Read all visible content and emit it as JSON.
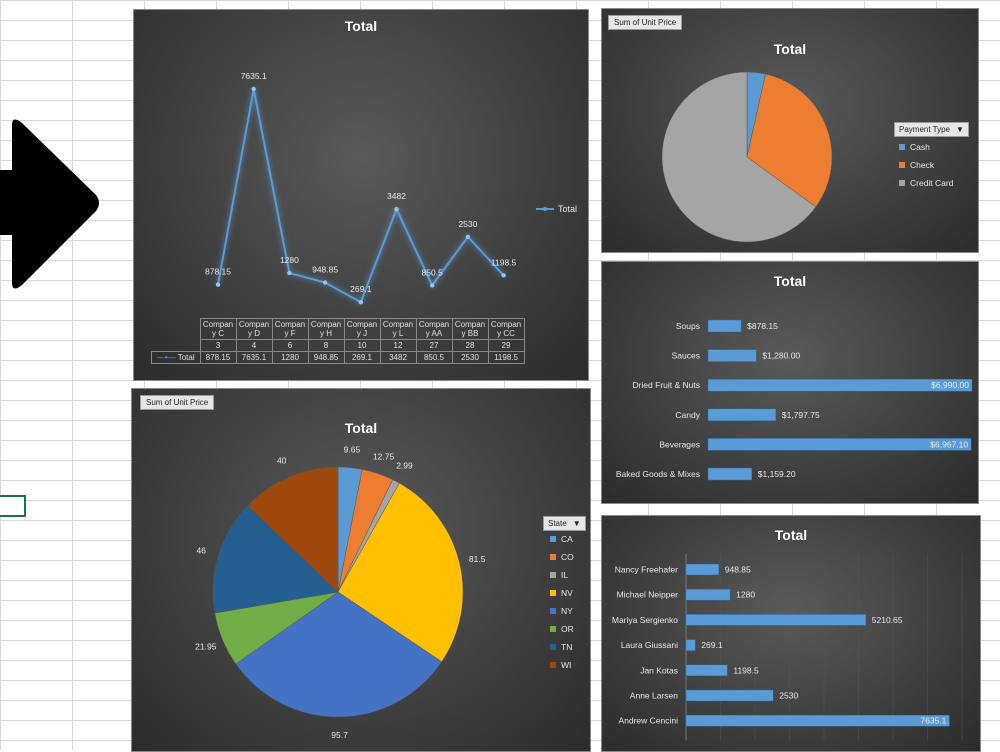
{
  "charts": {
    "line": {
      "title": "Total",
      "legend": "Total",
      "chart_data": {
        "type": "line",
        "categories": [
          "Company C",
          "Company D",
          "Company F",
          "Company H",
          "Company J",
          "Company L",
          "Company AA",
          "Company BB",
          "Company CC"
        ],
        "cat_line1": [
          "Compan",
          "Compan",
          "Compan",
          "Compan",
          "Compan",
          "Compan",
          "Compan",
          "Compan",
          "Compan"
        ],
        "cat_line2": [
          "y C",
          "y D",
          "y F",
          "y H",
          "y J",
          "y L",
          "y AA",
          "y BB",
          "y CC"
        ],
        "ids": [
          "3",
          "4",
          "6",
          "8",
          "10",
          "12",
          "27",
          "28",
          "29"
        ],
        "values": [
          878.15,
          7635.1,
          1280,
          948.85,
          269.1,
          3482,
          850.5,
          2530,
          1198.5
        ],
        "value_labels": [
          "878.15",
          "7635.1",
          "1280",
          "948.85",
          "269.1",
          "3482",
          "850.5",
          "2530",
          "1198.5"
        ],
        "series_name": "Total",
        "color": "#5b9bd5"
      }
    },
    "pie_payment": {
      "field_button": "Sum of Unit Price",
      "title": "Total",
      "legend_title": "Payment Type",
      "chart_data": {
        "type": "pie",
        "labels": [
          "Cash",
          "Check",
          "Credit Card"
        ],
        "values": [
          3.5,
          31.5,
          65
        ],
        "colors": [
          "#5b9bd5",
          "#ed7d31",
          "#a5a5a5"
        ]
      }
    },
    "bar_category": {
      "title": "Total",
      "chart_data": {
        "type": "bar",
        "orientation": "horizontal",
        "categories": [
          "Soups",
          "Sauces",
          "Dried Fruit & Nuts",
          "Candy",
          "Beverages",
          "Baked Goods & Mixes"
        ],
        "values": [
          878.15,
          1280,
          6990,
          1797.75,
          6967.1,
          1159.2
        ],
        "value_labels": [
          "$878.15",
          "$1,280.00",
          "$6,990.00",
          "$1,797.75",
          "$6,967.10",
          "$1,159.20"
        ],
        "xlim": [
          0,
          6990
        ],
        "color": "#5b9bd5"
      }
    },
    "pie_state": {
      "field_button": "Sum of Unit Price",
      "title": "Total",
      "legend_title": "State",
      "chart_data": {
        "type": "pie",
        "labels": [
          "CA",
          "CO",
          "IL",
          "NV",
          "NY",
          "OR",
          "TN",
          "WI"
        ],
        "values": [
          9.65,
          12.75,
          2.99,
          81.5,
          95.7,
          21.95,
          46,
          40
        ],
        "value_labels": [
          "9.65",
          "12.75",
          "2.99",
          "81.5",
          "95.7",
          "21.95",
          "46",
          "40"
        ],
        "colors": [
          "#5b9bd5",
          "#ed7d31",
          "#a5a5a5",
          "#ffc000",
          "#4472c4",
          "#70ad47",
          "#255e91",
          "#9e480e"
        ]
      }
    },
    "bar_employee": {
      "title": "Total",
      "chart_data": {
        "type": "bar",
        "orientation": "horizontal",
        "categories": [
          "Nancy Freehafer",
          "Michael Neipper",
          "Mariya Sergienko",
          "Laura Giussani",
          "Jan Kotas",
          "Anne Larsen",
          "Andrew Cencini"
        ],
        "values": [
          948.85,
          1280,
          5210.65,
          269.1,
          1198.5,
          2530,
          7635.1
        ],
        "value_labels": [
          "948.85",
          "1280",
          "5210.65",
          "269.1",
          "1198.5",
          "2530",
          "7635.1"
        ],
        "xlim": [
          0,
          8000
        ],
        "color": "#5b9bd5"
      }
    }
  }
}
